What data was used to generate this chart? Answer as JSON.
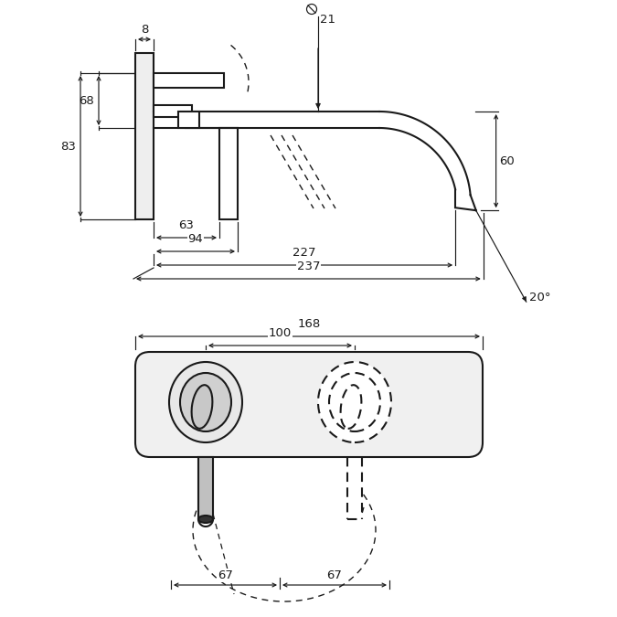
{
  "bg": "#ffffff",
  "lc": "#1a1a1a",
  "lw": 1.5,
  "lwd": 0.85,
  "fs": 9.5,
  "dims": {
    "d8": "8",
    "d21": "21",
    "d68": "68",
    "d83": "83",
    "d60": "60",
    "d63": "63",
    "d94": "94",
    "d227": "227",
    "d237": "237",
    "d168": "168",
    "d100": "100",
    "d67a": "67",
    "d67b": "67",
    "a20": "20°"
  }
}
